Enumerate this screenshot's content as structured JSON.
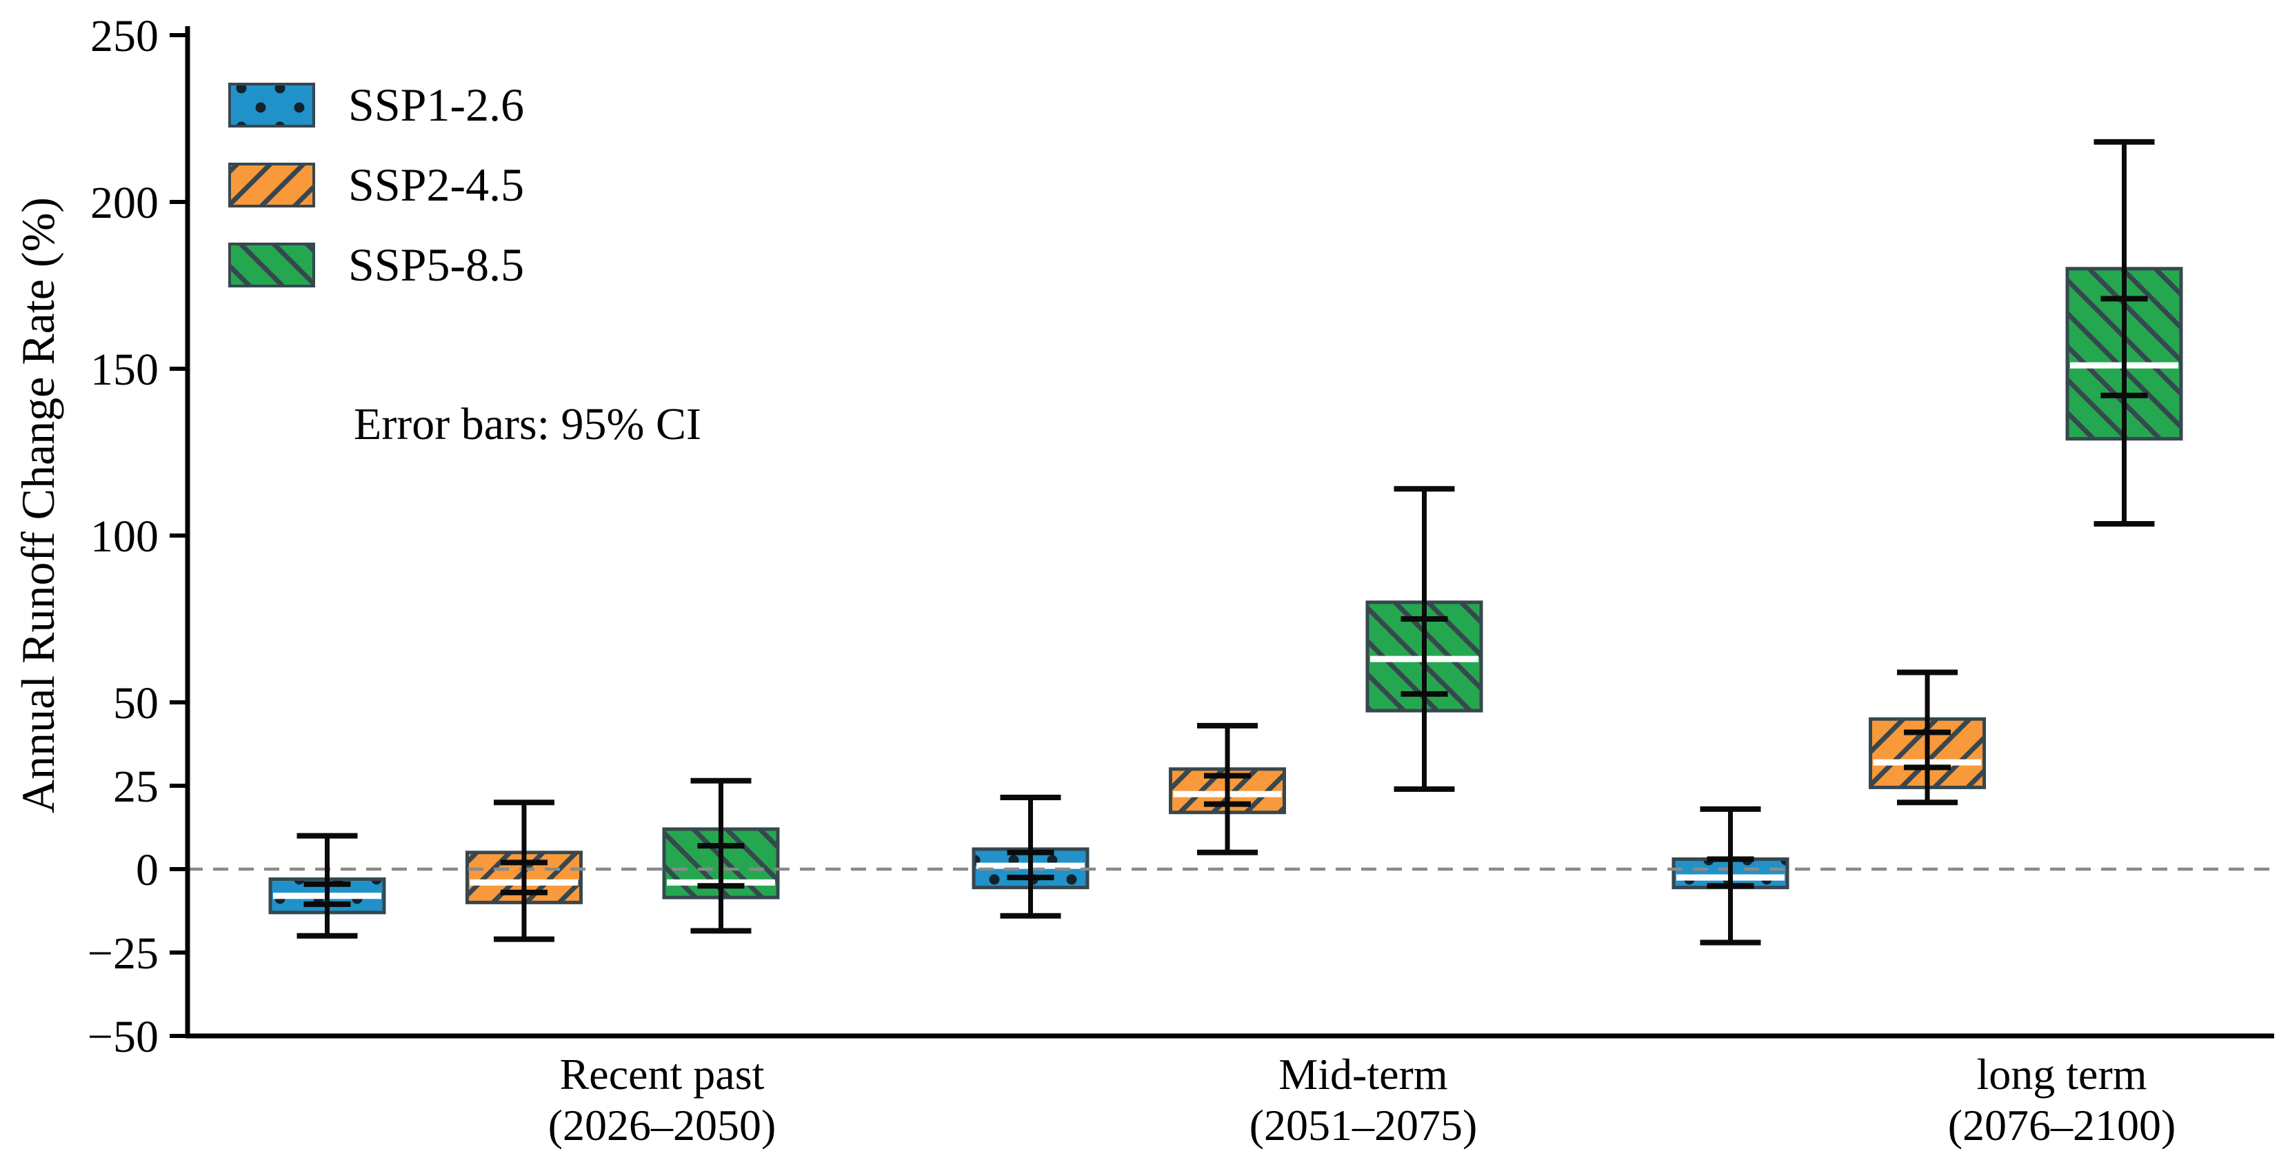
{
  "chart_data": {
    "type": "box",
    "title": "",
    "ylabel": "Annual Runoff Change Rate (%)",
    "xlabel": "",
    "ylim": [
      -50,
      250
    ],
    "y_ticks": [
      250,
      200,
      150,
      100,
      50,
      25,
      0,
      -25,
      -50
    ],
    "grid": "off",
    "zero_reference_line": 0,
    "note": "Error bars: 95% CI",
    "legend_position": "upper-left-inside",
    "categories": [
      {
        "line1": "Recent past",
        "line2": "(2026–2050)"
      },
      {
        "line1": "Mid-term",
        "line2": "(2051–2075)"
      },
      {
        "line1": "long term",
        "line2": "(2076–2100)"
      }
    ],
    "units": "%",
    "series": [
      {
        "name": "SSP1-2.6",
        "color": "#2191c9",
        "hatch": "dots",
        "boxes": [
          {
            "category": "Recent past (2026–2050)",
            "whisker_low": -20,
            "q1": -13,
            "ci_low": -10.5,
            "median": -8,
            "ci_high": -4.5,
            "q3": -3,
            "whisker_high": 10
          },
          {
            "category": "Mid-term (2051–2075)",
            "whisker_low": -14,
            "q1": -5.5,
            "ci_low": -2.5,
            "median": 1,
            "ci_high": 5,
            "q3": 6,
            "whisker_high": 21.5
          },
          {
            "category": "long term (2076–2100)",
            "whisker_low": -22,
            "q1": -5.5,
            "ci_low": -5,
            "median": -2.5,
            "ci_high": 3,
            "q3": 3,
            "whisker_high": 18
          }
        ]
      },
      {
        "name": "SSP2-4.5",
        "color": "#f8993b",
        "hatch": "forward-diagonal",
        "boxes": [
          {
            "category": "Recent past (2026–2050)",
            "whisker_low": -21,
            "q1": -10,
            "ci_low": -7,
            "median": -4,
            "ci_high": 2,
            "q3": 5,
            "whisker_high": 20
          },
          {
            "category": "Mid-term (2051–2075)",
            "whisker_low": 5,
            "q1": 17,
            "ci_low": 19.5,
            "median": 22.5,
            "ci_high": 28,
            "q3": 30,
            "whisker_high": 43
          },
          {
            "category": "long term (2076–2100)",
            "whisker_low": 20,
            "q1": 24.5,
            "ci_low": 30.5,
            "median": 32,
            "ci_high": 41,
            "q3": 45,
            "whisker_high": 59
          }
        ]
      },
      {
        "name": "SSP5-8.5",
        "color": "#25a750",
        "hatch": "backward-diagonal",
        "boxes": [
          {
            "category": "Recent past (2026–2050)",
            "whisker_low": -18.5,
            "q1": -8.5,
            "ci_low": -5,
            "median": -4,
            "ci_high": 7,
            "q3": 12,
            "whisker_high": 26.5
          },
          {
            "category": "Mid-term (2051–2075)",
            "whisker_low": 24,
            "q1": 47.5,
            "ci_low": 52.5,
            "median": 63,
            "ci_high": 75,
            "q3": 80,
            "whisker_high": 114
          },
          {
            "category": "long term (2076–2100)",
            "whisker_low": 103.5,
            "q1": 129,
            "ci_low": 142,
            "median": 151,
            "ci_high": 171,
            "q3": 180,
            "whisker_high": 218
          }
        ]
      }
    ],
    "style": {
      "box_edge_color": "#37474f",
      "hatch_color": "#37474f",
      "dot_hatch_color": "#13222c",
      "median_color": "#ffffff",
      "whisker_color": "#0a0a0a",
      "zero_line_color": "#8a8a8a",
      "axis_color": "#000000"
    }
  }
}
